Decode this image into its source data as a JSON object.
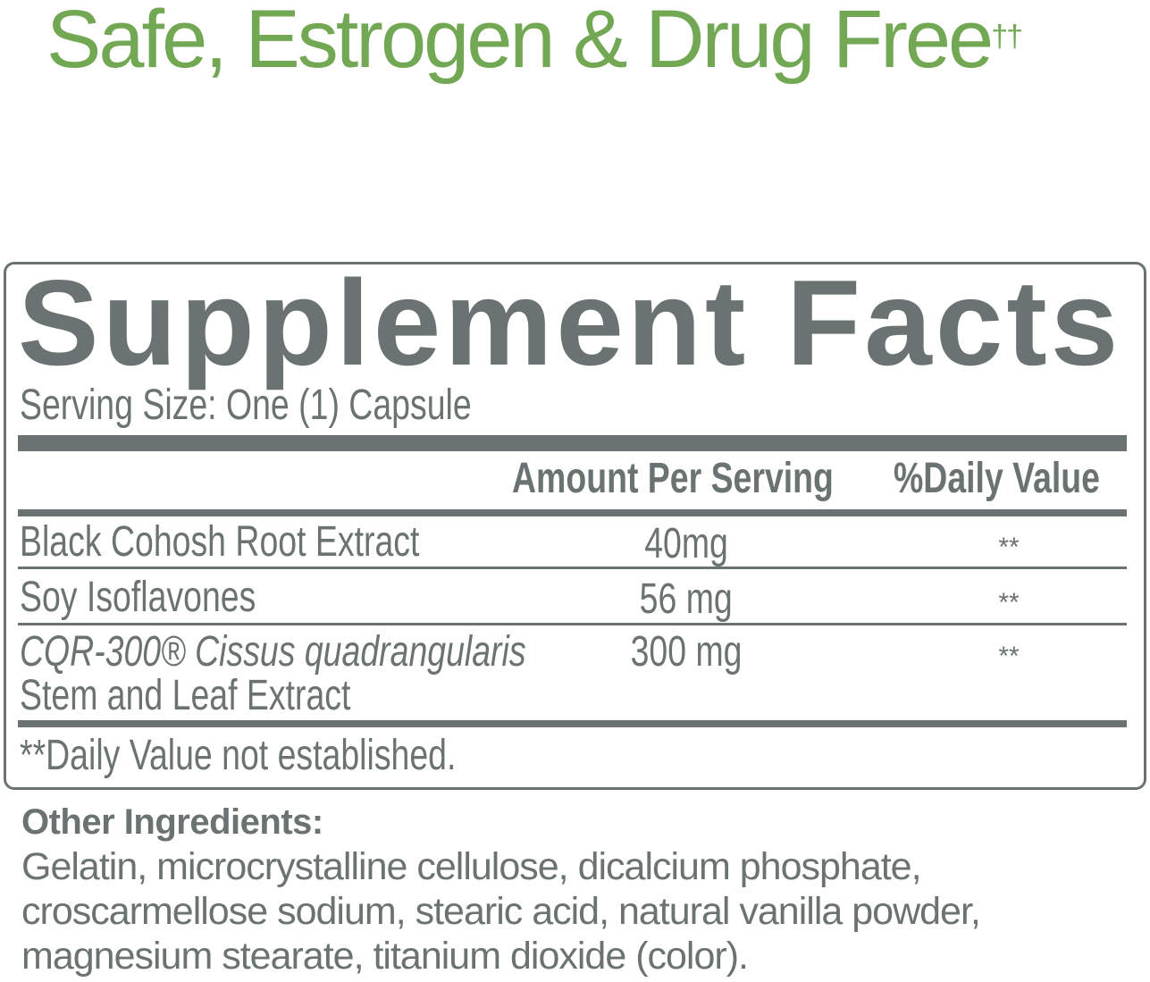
{
  "tagline": {
    "text": "Safe, Estrogen & Drug Free",
    "mark": "††"
  },
  "colors": {
    "tagline_green": "#72a853",
    "label_gray": "#6b7372"
  },
  "facts": {
    "title": "Supplement Facts",
    "serving_size": "Serving Size: One (1) Capsule",
    "headers": {
      "amount": "Amount Per Serving",
      "daily_value": "%Daily Value"
    },
    "rows": [
      {
        "name": "Black Cohosh Root Extract",
        "amount": "40mg",
        "dv": "**"
      },
      {
        "name": "Soy Isoflavones",
        "amount": "56 mg",
        "dv": "**"
      },
      {
        "name_italic": "CQR-300® Cissus quadrangularis",
        "name_line2": "Stem and Leaf Extract",
        "amount": "300 mg",
        "dv": "**"
      }
    ],
    "footnote": "**Daily Value not established."
  },
  "other_ingredients": {
    "title": "Other Ingredients:",
    "text": "Gelatin, microcrystalline cellulose, dicalcium phosphate, croscarmellose sodium, stearic acid, natural vanilla powder, magnesium stearate, titanium dioxide (color)."
  }
}
